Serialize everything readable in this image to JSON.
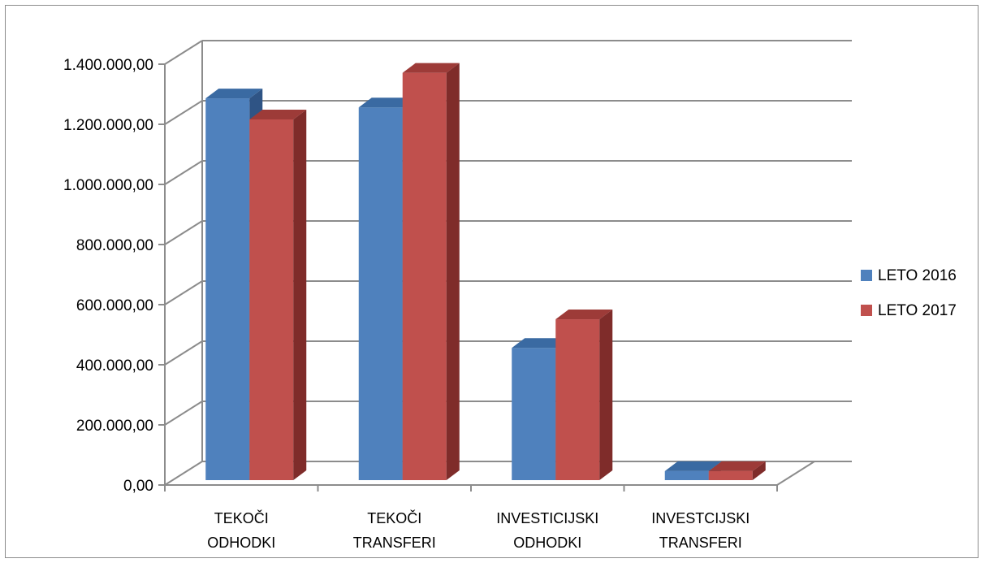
{
  "chart_data": {
    "type": "bar",
    "categories": [
      [
        "TEKOČI",
        "ODHODKI"
      ],
      [
        "TEKOČI",
        "TRANSFERI"
      ],
      [
        "INVESTICIJSKI",
        "ODHODKI"
      ],
      [
        "INVESTCIJSKI",
        "TRANSFERI"
      ]
    ],
    "series": [
      {
        "name": "LETO 2016",
        "values": [
          1270000,
          1240000,
          440000,
          30000
        ]
      },
      {
        "name": "LETO 2017",
        "values": [
          1200000,
          1355000,
          535000,
          30000
        ]
      }
    ],
    "ylim": [
      0,
      1400000
    ],
    "yticks": [
      "0,00",
      "200.000,00",
      "400.000,00",
      "600.000,00",
      "800.000,00",
      "1.000.000,00",
      "1.200.000,00",
      "1.400.000,00"
    ],
    "grid": true,
    "legend_position": "right",
    "colors": {
      "series": [
        {
          "front": "#4f81bd",
          "side": "#2f5485",
          "top": "#3a6aa2"
        },
        {
          "front": "#c0504d",
          "side": "#7f2c2a",
          "top": "#9d3b38"
        }
      ],
      "grid": "#8c8c8c",
      "wall_line": "#8c8c8c"
    }
  }
}
